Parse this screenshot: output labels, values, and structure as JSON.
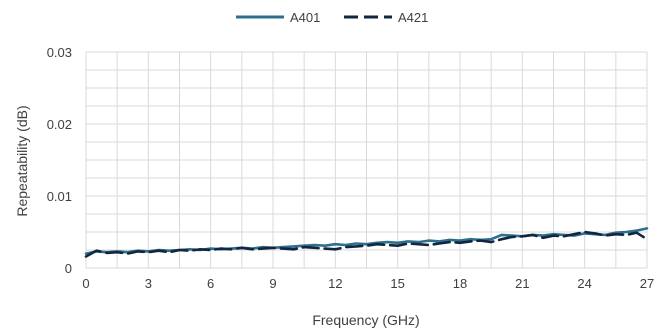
{
  "chart_data": {
    "type": "line",
    "title": "",
    "xlabel": "Frequency (GHz)",
    "ylabel": "Repeatability (dB)",
    "xlim": [
      0,
      27
    ],
    "ylim": [
      0,
      0.03
    ],
    "x_ticks": [
      0,
      3,
      6,
      9,
      12,
      15,
      18,
      21,
      24,
      27
    ],
    "x_tick_labels": [
      "0",
      "3",
      "6",
      "9",
      "12",
      "15",
      "18",
      "21",
      "24",
      "27"
    ],
    "y_ticks": [
      0,
      0.01,
      0.02,
      0.03
    ],
    "y_tick_labels": [
      "0",
      "0.01",
      "0.02",
      "0.03"
    ],
    "grid": true,
    "legend_position": "top-center",
    "x": [
      0,
      0.5,
      1,
      1.5,
      2,
      2.5,
      3,
      3.5,
      4,
      4.5,
      5,
      5.5,
      6,
      6.5,
      7,
      7.5,
      8,
      8.5,
      9,
      9.5,
      10,
      10.5,
      11,
      11.5,
      12,
      12.5,
      13,
      13.5,
      14,
      14.5,
      15,
      15.5,
      16,
      16.5,
      17,
      17.5,
      18,
      18.5,
      19,
      19.5,
      20,
      20.5,
      21,
      21.5,
      22,
      22.5,
      23,
      23.5,
      24,
      24.5,
      25,
      25.5,
      26,
      26.5,
      27
    ],
    "series": [
      {
        "name": "A401",
        "color": "#2e6f8e",
        "dash": "solid",
        "values": [
          0.002,
          0.0023,
          0.0022,
          0.0023,
          0.0022,
          0.0024,
          0.0023,
          0.0025,
          0.0024,
          0.0025,
          0.0026,
          0.0025,
          0.0027,
          0.0026,
          0.0027,
          0.0028,
          0.0027,
          0.0029,
          0.0028,
          0.0029,
          0.003,
          0.0031,
          0.0032,
          0.0031,
          0.0033,
          0.0032,
          0.0034,
          0.0033,
          0.0035,
          0.0036,
          0.0035,
          0.0037,
          0.0036,
          0.0038,
          0.0037,
          0.0039,
          0.0038,
          0.004,
          0.0039,
          0.004,
          0.0046,
          0.0045,
          0.0044,
          0.0046,
          0.0045,
          0.0047,
          0.0046,
          0.0045,
          0.0048,
          0.0047,
          0.0046,
          0.0049,
          0.005,
          0.0052,
          0.0055
        ]
      },
      {
        "name": "A421",
        "color": "#12263f",
        "dash": "dashed",
        "values": [
          0.0016,
          0.0024,
          0.0021,
          0.0022,
          0.002,
          0.0023,
          0.0022,
          0.0024,
          0.0022,
          0.0025,
          0.0024,
          0.0026,
          0.0025,
          0.0027,
          0.0026,
          0.0028,
          0.0026,
          0.0027,
          0.0028,
          0.0027,
          0.0026,
          0.0029,
          0.0028,
          0.0027,
          0.0026,
          0.0029,
          0.003,
          0.0031,
          0.0033,
          0.0032,
          0.0031,
          0.0034,
          0.0033,
          0.0032,
          0.0034,
          0.0036,
          0.0035,
          0.0037,
          0.0038,
          0.0036,
          0.004,
          0.0043,
          0.0044,
          0.0046,
          0.0042,
          0.0045,
          0.0044,
          0.0047,
          0.005,
          0.0048,
          0.0045,
          0.0047,
          0.0046,
          0.0049,
          0.004
        ]
      }
    ]
  }
}
